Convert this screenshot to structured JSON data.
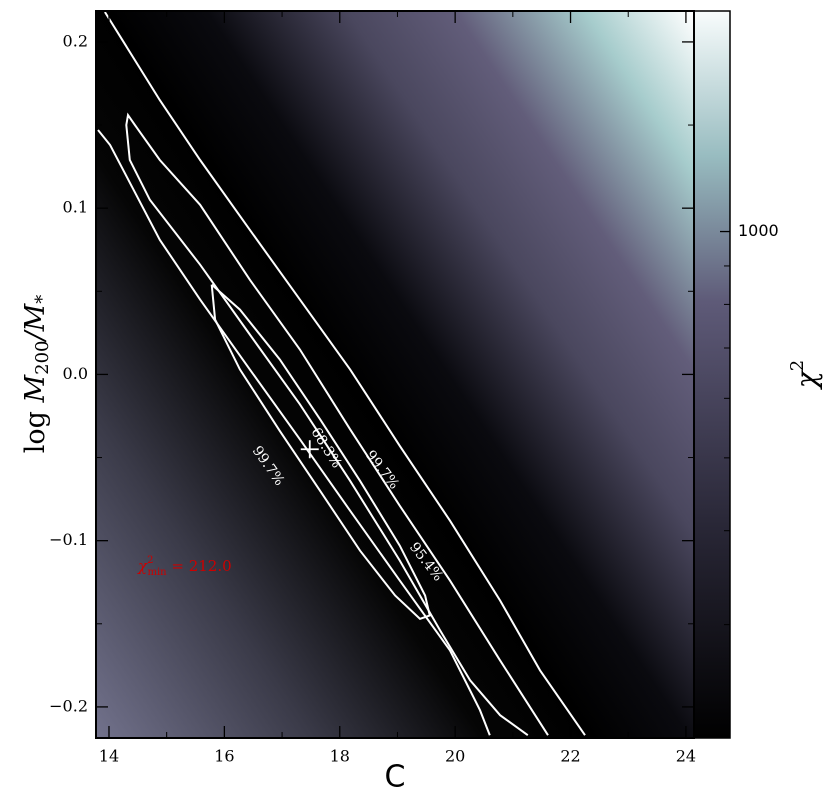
{
  "chart_data": {
    "type": "contour",
    "xlabel": "C",
    "ylabel": [
      "log ",
      "M",
      "200",
      "/M",
      "*"
    ],
    "xlim": [
      13.775,
      24.14
    ],
    "ylim": [
      -0.2187,
      0.2186
    ],
    "xticks": [
      14,
      16,
      18,
      20,
      22,
      24
    ],
    "xminor": [
      15,
      17,
      19,
      21,
      23
    ],
    "yticks": [
      {
        "value": -0.2,
        "label": "−0.2"
      },
      {
        "value": -0.1,
        "label": "−0.1"
      },
      {
        "value": 0,
        "label": "0.0"
      },
      0.1,
      0.2
    ],
    "yminor": [
      -0.15,
      -0.05,
      0.05,
      0.15
    ],
    "line_color": "#ffffff",
    "series": [
      {
        "name": "68.3%",
        "x": [
          15.78,
          16.27,
          16.96,
          17.66,
          18.35,
          19.04,
          19.48,
          19.56,
          19.39,
          18.96,
          18.35,
          17.66,
          16.96,
          16.27,
          15.84,
          15.78
        ],
        "y": [
          0.054,
          0.039,
          0.009,
          -0.027,
          -0.064,
          -0.103,
          -0.133,
          -0.145,
          -0.147,
          -0.133,
          -0.106,
          -0.07,
          -0.034,
          0.003,
          0.033,
          0.054
        ]
      },
      {
        "name": "95.4%",
        "x": [
          21.61,
          20.78,
          19.91,
          19.04,
          18.18,
          17.31,
          16.44,
          15.58,
          14.88,
          14.45,
          14.33,
          14.3,
          14.36,
          14.71,
          15.58,
          16.44,
          17.31,
          18.18,
          19.04,
          19.74,
          20.26,
          20.78,
          21.26
        ],
        "y": [
          -0.217,
          -0.172,
          -0.124,
          -0.079,
          -0.033,
          0.015,
          0.057,
          0.102,
          0.129,
          0.15,
          0.156,
          0.15,
          0.129,
          0.105,
          0.066,
          0.024,
          -0.018,
          -0.064,
          -0.112,
          -0.154,
          -0.184,
          -0.205,
          -0.217
        ]
      },
      {
        "name": "99.7%",
        "x": [
          13.93,
          14.88,
          15.58,
          16.44,
          17.31,
          18.18,
          19.04,
          19.91,
          20.78,
          21.47,
          22.25
        ],
        "y": [
          0.218,
          0.165,
          0.129,
          0.087,
          0.045,
          0.003,
          -0.043,
          -0.088,
          -0.136,
          -0.178,
          -0.217
        ]
      },
      {
        "name": "99.7%",
        "x": [
          13.81,
          14.02,
          14.88,
          15.58,
          16.44,
          17.31,
          18.18,
          19.04,
          19.91,
          20.43,
          20.6
        ],
        "y": [
          0.147,
          0.138,
          0.081,
          0.045,
          0.003,
          -0.039,
          -0.082,
          -0.124,
          -0.166,
          -0.202,
          -0.217
        ]
      }
    ],
    "best_fit": {
      "x": 17.48,
      "y": -0.045
    },
    "annotation": {
      "symbol": "χ",
      "sup": "2",
      "sub": "min",
      "text": " = 212.0",
      "color": "#cc0000"
    },
    "colorbar": {
      "label": [
        "χ",
        "2"
      ],
      "log": true,
      "clim": [
        212,
        1965
      ],
      "ticks": [
        1000
      ],
      "minor": [
        300,
        400,
        500,
        600,
        700,
        800,
        900
      ]
    }
  }
}
